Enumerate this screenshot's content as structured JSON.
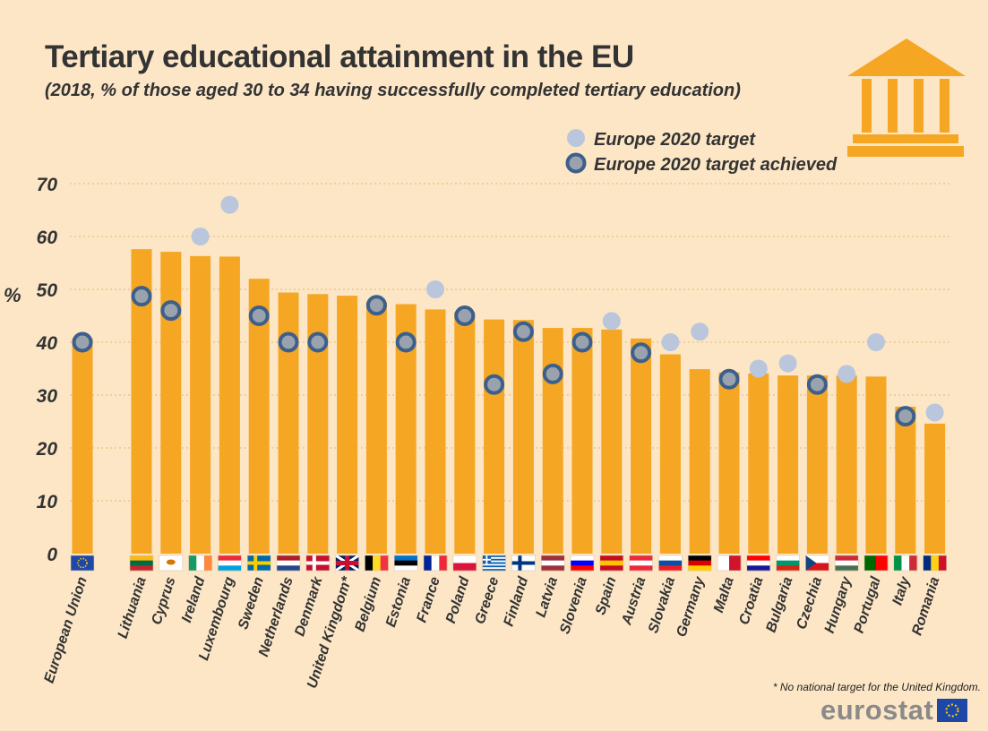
{
  "title": "Tertiary educational attainment in the EU",
  "subtitle": "(2018, % of those aged 30 to 34 having successfully completed tertiary education)",
  "footnote": "* No national target for the United Kingdom.",
  "brand": "eurostat",
  "icon": "building-columns-icon",
  "colors": {
    "bar": "#f5a623",
    "target": "#b9c6dc",
    "achieved_fill": "#9aa3ad",
    "achieved_ring": "#3c5f8c",
    "background": "#fce6c6",
    "grid": "#e8b66a"
  },
  "chart_data": {
    "type": "bar",
    "title": "Tertiary educational attainment in the EU",
    "subtitle": "(2018, % of those aged 30 to 34 having successfully completed tertiary education)",
    "ylabel": "%",
    "ylim": [
      0,
      70
    ],
    "yticks": [
      0,
      10,
      20,
      30,
      40,
      50,
      60,
      70
    ],
    "grid": true,
    "legend_position": "top-right",
    "legend": [
      {
        "key": "target",
        "label": "Europe 2020 target"
      },
      {
        "key": "achieved",
        "label": "Europe 2020 target achieved"
      }
    ],
    "categories": [
      "European Union",
      "Lithuania",
      "Cyprus",
      "Ireland",
      "Luxembourg",
      "Sweden",
      "Netherlands",
      "Denmark",
      "United Kingdom*",
      "Belgium",
      "Estonia",
      "France",
      "Poland",
      "Greece",
      "Finland",
      "Latvia",
      "Slovenia",
      "Spain",
      "Austria",
      "Slovakia",
      "Germany",
      "Malta",
      "Croatia",
      "Bulgaria",
      "Czechia",
      "Hungary",
      "Portugal",
      "Italy",
      "Romania"
    ],
    "values": [
      40.7,
      57.6,
      57.1,
      56.3,
      56.2,
      52.0,
      49.4,
      49.1,
      48.8,
      47.6,
      47.2,
      46.2,
      45.7,
      44.3,
      44.2,
      42.7,
      42.7,
      42.4,
      40.7,
      37.7,
      34.9,
      34.3,
      34.1,
      33.7,
      33.7,
      33.7,
      33.5,
      27.8,
      24.6
    ],
    "targets": [
      {
        "value": 40,
        "achieved": true
      },
      {
        "value": 48.7,
        "achieved": true
      },
      {
        "value": 46,
        "achieved": true
      },
      {
        "value": 60,
        "achieved": false
      },
      {
        "value": 66,
        "achieved": false
      },
      {
        "value": 45,
        "achieved": true
      },
      {
        "value": 40,
        "achieved": true
      },
      {
        "value": 40,
        "achieved": true
      },
      null,
      {
        "value": 47,
        "achieved": true
      },
      {
        "value": 40,
        "achieved": true
      },
      {
        "value": 50,
        "achieved": false
      },
      {
        "value": 45,
        "achieved": true
      },
      {
        "value": 32,
        "achieved": true
      },
      {
        "value": 42,
        "achieved": true
      },
      {
        "value": 34,
        "achieved": true
      },
      {
        "value": 40,
        "achieved": true
      },
      {
        "value": 44,
        "achieved": false
      },
      {
        "value": 38,
        "achieved": true
      },
      {
        "value": 40,
        "achieved": false
      },
      {
        "value": 42,
        "achieved": false
      },
      {
        "value": 33,
        "achieved": true
      },
      {
        "value": 35,
        "achieved": false
      },
      {
        "value": 36,
        "achieved": false
      },
      {
        "value": 32,
        "achieved": true
      },
      {
        "value": 34,
        "achieved": false
      },
      {
        "value": 40,
        "achieved": false
      },
      {
        "value": 26,
        "achieved": true
      },
      {
        "value": 26.7,
        "achieved": false
      }
    ]
  }
}
